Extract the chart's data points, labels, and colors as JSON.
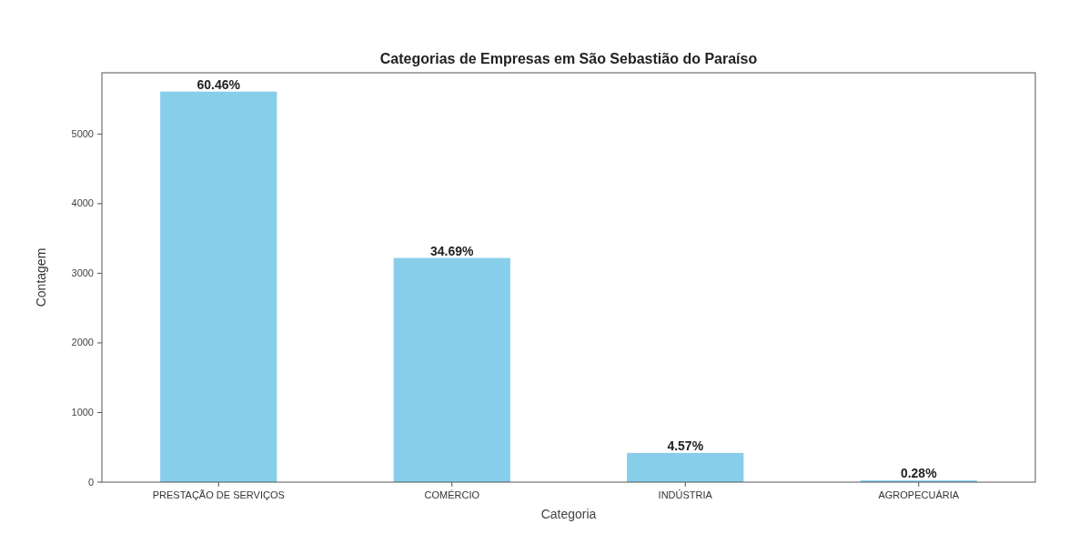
{
  "chart_data": {
    "type": "bar",
    "title": "Categorias de Empresas em São Sebastião do Paraíso",
    "xlabel": "Categoria",
    "ylabel": "Contagem",
    "categories": [
      "PRESTAÇÃO DE SERVIÇOS",
      "COMÉRCIO",
      "INDÚSTRIA",
      "AGROPECUÁRIA"
    ],
    "values": [
      5610,
      3220,
      420,
      25
    ],
    "annotations": [
      {
        "text": "60.46%",
        "x": "PRESTAÇÃO DE SERVIÇOS",
        "y": 5610
      },
      {
        "text": "34.69%",
        "x": "COMÉRCIO",
        "y": 3220
      },
      {
        "text": "4.57%",
        "x": "INDÚSTRIA",
        "y": 420
      },
      {
        "text": "0.28%",
        "x": "AGROPECUÁRIA",
        "y": 25
      }
    ],
    "color": "#87ceeb",
    "ylim": [
      0,
      5880
    ],
    "yticks": [
      0,
      1000,
      2000,
      3000,
      4000,
      5000
    ],
    "grid": false
  }
}
